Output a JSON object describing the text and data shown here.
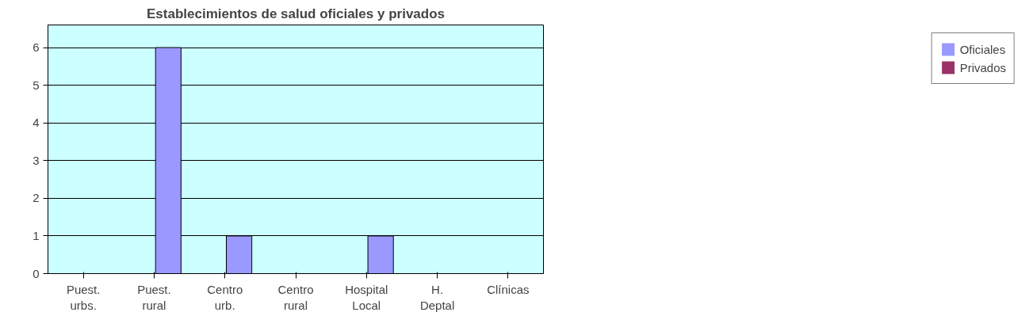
{
  "chart_data": {
    "type": "bar",
    "title": "Establecimientos de salud oficiales y privados",
    "categories": [
      "Puest. urbs.",
      "Puest. rural",
      "Centro urb.",
      "Centro rural",
      "Hospital Local",
      "H. Deptal",
      "Clínicas"
    ],
    "series": [
      {
        "name": "Privados",
        "color": "#993366",
        "values": [
          0,
          0,
          0,
          0,
          0,
          0,
          null
        ]
      },
      {
        "name": "Oficiales",
        "color": "#9999ff",
        "values": [
          0,
          6,
          1,
          0,
          1,
          0,
          null
        ]
      }
    ],
    "ylim": [
      0,
      6.6
    ],
    "yticks": [
      0,
      1,
      2,
      3,
      4,
      5,
      6
    ],
    "grid": "y",
    "legend": "right"
  }
}
